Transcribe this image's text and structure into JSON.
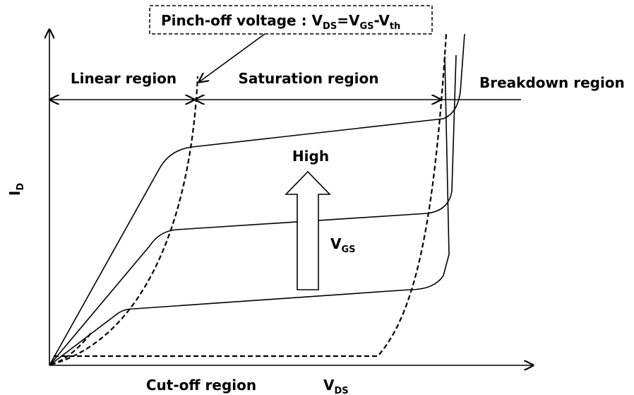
{
  "pinch_off": {
    "parts": [
      "Pinch-off voltage : V",
      "DS",
      "=V",
      "GS",
      "-V",
      "th"
    ]
  },
  "regions": {
    "linear": "Linear region",
    "saturation": "Saturation region",
    "breakdown": "Breakdown region",
    "cutoff": "Cut-off region"
  },
  "axes": {
    "y": {
      "parts": [
        "I",
        "D"
      ]
    },
    "x": {
      "parts": [
        "V",
        "DS"
      ]
    }
  },
  "vgs_arrow": {
    "direction": "High",
    "label": {
      "parts": [
        "V",
        "GS"
      ]
    }
  }
}
